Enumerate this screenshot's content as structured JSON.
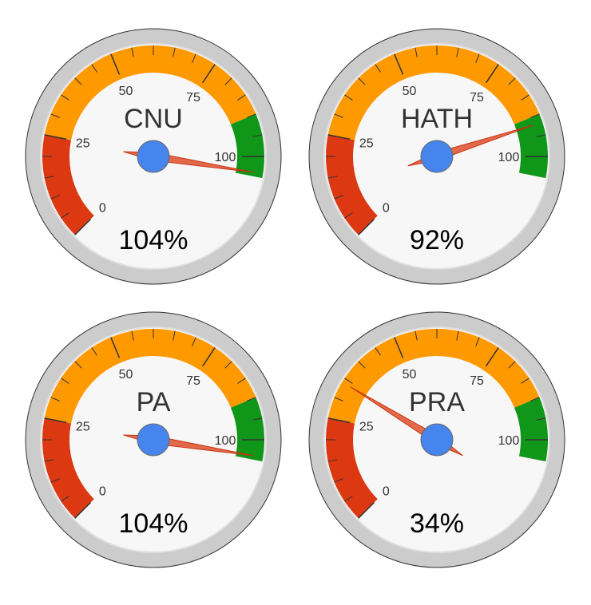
{
  "colors": {
    "red": "#dc3912",
    "orange": "#ff9900",
    "green": "#109618",
    "needle": "#dc3912",
    "hub": "#4684ee",
    "rim": "#cccccc",
    "face": "#f7f7f7"
  },
  "chart_data": [
    {
      "type": "gauge",
      "label": "CNU",
      "value": 104,
      "display": "104%",
      "min": 0,
      "max": 120,
      "ticks": [
        "0",
        "25",
        "50",
        "75",
        "100"
      ],
      "bands": [
        {
          "color": "red",
          "from": 0,
          "to": 25
        },
        {
          "color": "orange",
          "from": 25,
          "to": 90
        },
        {
          "color": "green",
          "from": 90,
          "to": 105
        }
      ]
    },
    {
      "type": "gauge",
      "label": "HATH",
      "value": 92,
      "display": "92%",
      "min": 0,
      "max": 120,
      "ticks": [
        "0",
        "25",
        "50",
        "75",
        "100"
      ],
      "bands": [
        {
          "color": "red",
          "from": 0,
          "to": 25
        },
        {
          "color": "orange",
          "from": 25,
          "to": 90
        },
        {
          "color": "green",
          "from": 90,
          "to": 105
        }
      ]
    },
    {
      "type": "gauge",
      "label": "PA",
      "value": 104,
      "display": "104%",
      "min": 0,
      "max": 120,
      "ticks": [
        "0",
        "25",
        "50",
        "75",
        "100"
      ],
      "bands": [
        {
          "color": "red",
          "from": 0,
          "to": 25
        },
        {
          "color": "orange",
          "from": 25,
          "to": 90
        },
        {
          "color": "green",
          "from": 90,
          "to": 105
        }
      ]
    },
    {
      "type": "gauge",
      "label": "PRA",
      "value": 34,
      "display": "34%",
      "min": 0,
      "max": 120,
      "ticks": [
        "0",
        "25",
        "50",
        "75",
        "100"
      ],
      "bands": [
        {
          "color": "red",
          "from": 0,
          "to": 25
        },
        {
          "color": "orange",
          "from": 25,
          "to": 90
        },
        {
          "color": "green",
          "from": 90,
          "to": 105
        }
      ]
    }
  ]
}
